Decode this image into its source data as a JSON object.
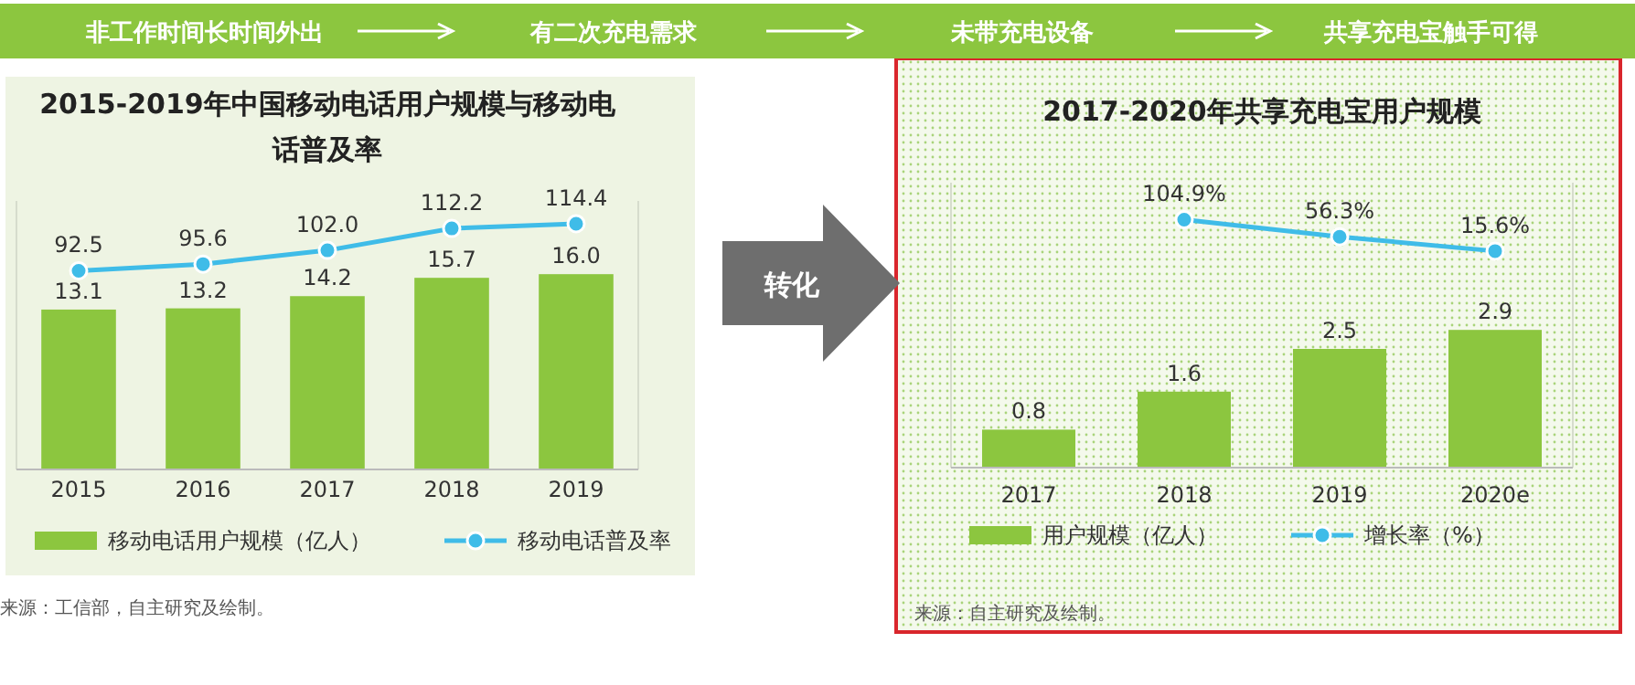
{
  "chart_data": [
    {
      "type": "bar",
      "title": "2015-2019年中国移动电话用户规模与移动电话普及率",
      "categories": [
        "2015",
        "2016",
        "2017",
        "2018",
        "2019"
      ],
      "legend": "bottom",
      "ylim": [
        0,
        22
      ],
      "y2lim": [
        0,
        125
      ],
      "tick_labels": false,
      "series": [
        {
          "name": "移动电话用户规模（亿人）",
          "type": "bar",
          "color": "#8cc63f",
          "values": [
            13.1,
            13.2,
            14.2,
            15.7,
            16.0
          ],
          "value_labels": [
            "13.1",
            "13.2",
            "14.2",
            "15.7",
            "16.0"
          ]
        },
        {
          "name": "移动电话普及率",
          "type": "line",
          "axis": "y2",
          "marker": "circle",
          "color": "#3fbce8",
          "values": [
            92.5,
            95.6,
            102.0,
            112.2,
            114.4
          ],
          "value_labels": [
            "92.5",
            "95.6",
            "102.0",
            "112.2",
            "114.4"
          ]
        }
      ],
      "annotations": [
        "来源：工信部，自主研究及绘制。"
      ]
    },
    {
      "type": "bar",
      "title": "2017-2020年共享充电宝用户规模",
      "categories": [
        "2017",
        "2018",
        "2019",
        "2020e"
      ],
      "legend": "bottom",
      "ylim": [
        0,
        6
      ],
      "y2lim": [
        -600,
        210
      ],
      "tick_labels": false,
      "series": [
        {
          "name": "用户规模（亿人）",
          "type": "bar",
          "color": "#8cc63f",
          "values": [
            0.8,
            1.6,
            2.5,
            2.9
          ],
          "value_labels": [
            "0.8",
            "1.6",
            "2.5",
            "2.9"
          ]
        },
        {
          "name": "增长率（%）",
          "type": "line",
          "axis": "y2",
          "marker": "circle",
          "color": "#3fbce8",
          "values": [
            null,
            104.9,
            56.3,
            15.6
          ],
          "value_labels": [
            null,
            "104.9%",
            "56.3%",
            "15.6%"
          ]
        }
      ],
      "annotations": [
        "来源：自主研究及绘制。"
      ]
    },
    {
      "type": "other",
      "annotations": [
        "非工作时间长时间外出",
        "有二次充电需求",
        "未带充电设备",
        "共享充电宝触手可得",
        "转化"
      ]
    }
  ]
}
